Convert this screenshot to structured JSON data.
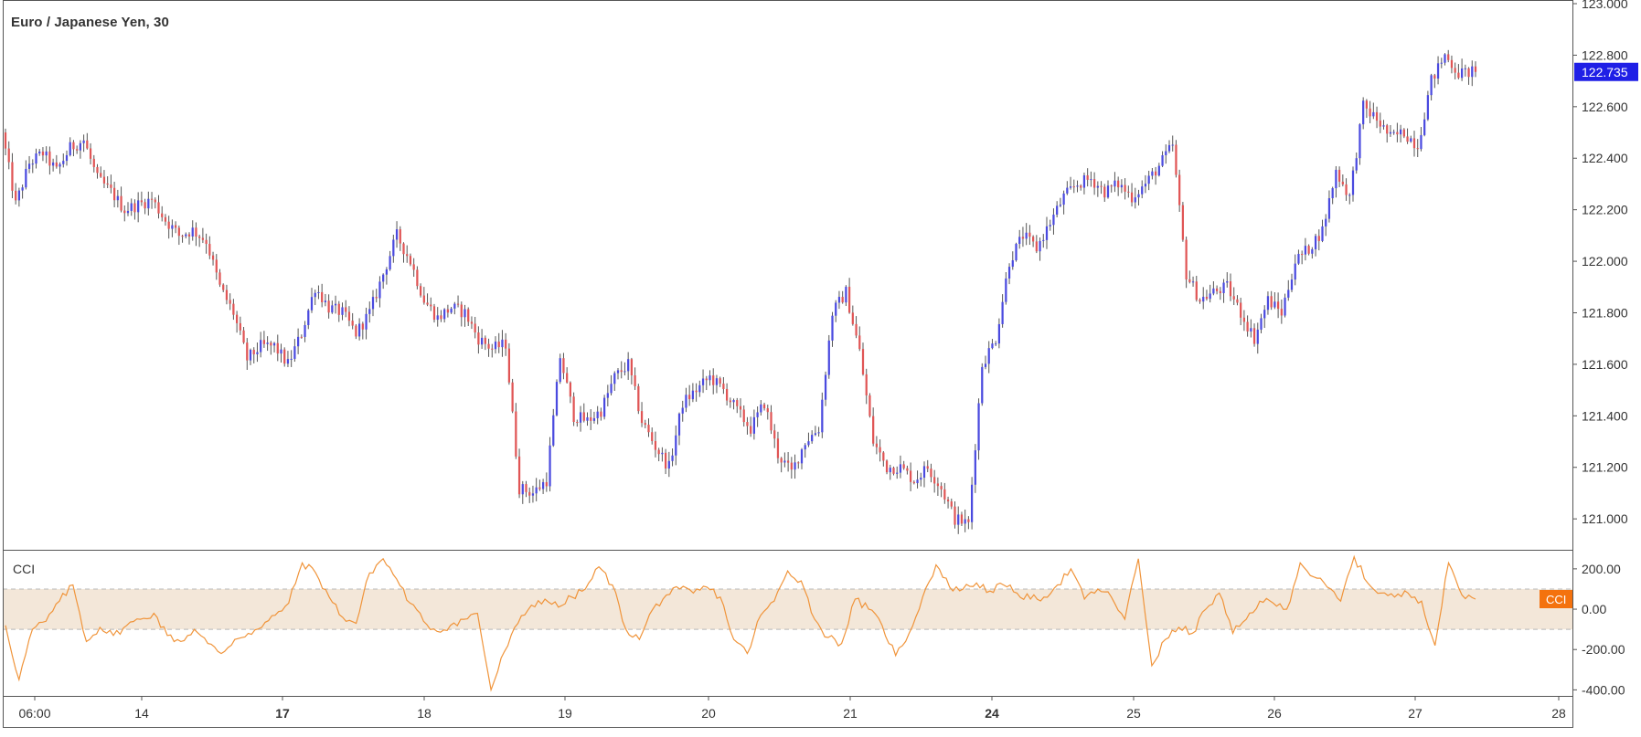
{
  "title": "Euro / Japanese Yen, 30",
  "colors": {
    "bull": "#4a4adf",
    "bear": "#e05555",
    "wick": "#555555",
    "cci_line": "#f0943a",
    "cci_band": "#f3e7d9",
    "price_badge": "#1f1fe6",
    "cci_badge": "#f4720e",
    "axis_text": "#333333",
    "frame": "#555555"
  },
  "chart_data": [
    {
      "type": "line",
      "subtype": "candlestick",
      "title": "Euro / Japanese Yen, 30",
      "ylim": [
        120.88,
        123.0
      ],
      "y_ticks": [
        121.0,
        121.2,
        121.4,
        121.6,
        121.8,
        122.0,
        122.2,
        122.4,
        122.6,
        122.8,
        123.0
      ],
      "y_tick_labels": [
        "121.000",
        "121.200",
        "121.400",
        "121.600",
        "121.800",
        "122.000",
        "122.200",
        "122.400",
        "122.600",
        "122.800",
        "123.000"
      ],
      "last_price": 122.735,
      "last_price_label": "122.735",
      "x_labels": [
        "06:00",
        "14",
        "17",
        "18",
        "19",
        "20",
        "21",
        "24",
        "25",
        "26",
        "27",
        "28"
      ],
      "x_labels_bold": [
        "17",
        "24"
      ],
      "series": [
        {
          "values": [
            122.5,
            122.22,
            122.38,
            122.42,
            122.35,
            122.44,
            122.47,
            122.32,
            122.27,
            122.2,
            122.22,
            122.24,
            122.16,
            122.1,
            122.12,
            122.08,
            121.9,
            121.8,
            121.62,
            121.67,
            121.67,
            121.6,
            121.72,
            121.9,
            121.82,
            121.8,
            121.72,
            121.8,
            121.95,
            122.1,
            122.0,
            121.85,
            121.78,
            121.82,
            121.8,
            121.7,
            121.66,
            121.68,
            121.12,
            121.1,
            121.15,
            121.63,
            121.4,
            121.38,
            121.42,
            121.55,
            121.6,
            121.38,
            121.28,
            121.2,
            121.45,
            121.5,
            121.55,
            121.5,
            121.42,
            121.35,
            121.45,
            121.25,
            121.18,
            121.3,
            121.35,
            121.8,
            121.88,
            121.65,
            121.3,
            121.2,
            121.2,
            121.15,
            121.2,
            121.12,
            121.0,
            120.98,
            121.6,
            121.7,
            122.0,
            122.1,
            122.05,
            122.15,
            122.25,
            122.3,
            122.32,
            122.27,
            122.3,
            122.25,
            122.3,
            122.37,
            122.45,
            121.95,
            121.85,
            121.88,
            121.9,
            121.8,
            121.7,
            121.85,
            121.8,
            122.0,
            122.05,
            122.12,
            122.35,
            122.25,
            122.6,
            122.55,
            122.48,
            122.5,
            122.45,
            122.7,
            122.8,
            122.73,
            122.735
          ]
        },
        {
          "type": "line",
          "name": "CCI",
          "label": "CCI",
          "ylim": [
            -430,
            290
          ],
          "y_ticks": [
            200,
            0,
            -200,
            -400
          ],
          "y_tick_labels": [
            "200.00",
            "0.00",
            "-200.00",
            "-400.00"
          ],
          "band": [
            -100,
            100
          ],
          "values": [
            -80,
            -350,
            -100,
            -60,
            40,
            120,
            -160,
            -90,
            -130,
            -80,
            -50,
            -20,
            -130,
            -160,
            -100,
            -170,
            -220,
            -150,
            -120,
            -90,
            -30,
            30,
            230,
            180,
            60,
            -40,
            -70,
            180,
            250,
            150,
            30,
            -60,
            -110,
            -80,
            -50,
            -20,
            -400,
            -210,
            -70,
            20,
            50,
            10,
            60,
            100,
            210,
            120,
            -100,
            -150,
            0,
            70,
            100,
            80,
            110,
            60,
            -150,
            -220,
            -30,
            40,
            190,
            140,
            -50,
            -140,
            -170,
            50,
            0,
            -80,
            -230,
            -120,
            60,
            220,
            110,
            100,
            130,
            90,
            120,
            80,
            50,
            60,
            120,
            200,
            50,
            100,
            60,
            -50,
            250,
            -280,
            -150,
            -90,
            -120,
            0,
            80,
            -120,
            -50,
            40,
            30,
            0,
            230,
            160,
            110,
            40,
            260,
            130,
            80,
            60,
            80,
            40,
            -180,
            230,
            70,
            50
          ]
        }
      ]
    }
  ]
}
